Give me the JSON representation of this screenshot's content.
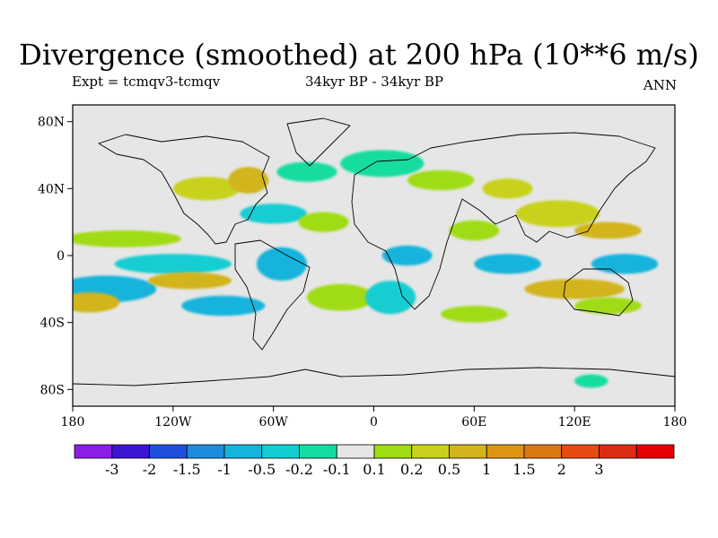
{
  "figure": {
    "title": "Divergence (smoothed) at 200 hPa (10**6 m/s)",
    "expt_label": "Expt = tcmqv3-tcmqv",
    "period_label": "34kyr BP - 34kyr BP",
    "season_label": "ANN"
  },
  "map": {
    "projection": "cylindrical-equidistant",
    "lon_range": [
      -180,
      180
    ],
    "lat_range": [
      -90,
      90
    ],
    "background_color": "#e6e6e6",
    "coastline_color": "#000000",
    "lat_ticks": [
      {
        "value": 80,
        "label": "80N"
      },
      {
        "value": 40,
        "label": "40N"
      },
      {
        "value": 0,
        "label": "0"
      },
      {
        "value": -40,
        "label": "40S"
      },
      {
        "value": -80,
        "label": "80S"
      }
    ],
    "lon_ticks": [
      {
        "value": -180,
        "label": "180"
      },
      {
        "value": -120,
        "label": "120W"
      },
      {
        "value": -60,
        "label": "60W"
      },
      {
        "value": 0,
        "label": "0"
      },
      {
        "value": 60,
        "label": "60E"
      },
      {
        "value": 120,
        "label": "120E"
      },
      {
        "value": 180,
        "label": "180"
      }
    ]
  },
  "colorbar": {
    "colors": [
      "#8c1ee6",
      "#3c14d2",
      "#1e50dc",
      "#1e8cdc",
      "#14b4dc",
      "#14cdd2",
      "#14dca0",
      "#e6e6e6",
      "#a0dc14",
      "#c8d21e",
      "#d2b41e",
      "#dc9614",
      "#dc7814",
      "#e64b14",
      "#dc2d14",
      "#e60000"
    ],
    "labels": [
      "-3",
      "-2",
      "-1.5",
      "-1",
      "-0.5",
      "-0.2",
      "-0.1",
      "0.1",
      "0.2",
      "0.5",
      "1",
      "1.5",
      "2",
      "3"
    ]
  },
  "field_blobs": [
    {
      "lon": -160,
      "lat": -20,
      "rx": 30,
      "ry": 8,
      "color": "#14b4dc"
    },
    {
      "lon": -170,
      "lat": -28,
      "rx": 18,
      "ry": 6,
      "color": "#d2b41e"
    },
    {
      "lon": -150,
      "lat": 10,
      "rx": 35,
      "ry": 5,
      "color": "#a0dc14"
    },
    {
      "lon": -120,
      "lat": -5,
      "rx": 35,
      "ry": 6,
      "color": "#14cdd2"
    },
    {
      "lon": -110,
      "lat": -15,
      "rx": 25,
      "ry": 5,
      "color": "#d2b41e"
    },
    {
      "lon": -90,
      "lat": -30,
      "rx": 25,
      "ry": 6,
      "color": "#14b4dc"
    },
    {
      "lon": -100,
      "lat": 40,
      "rx": 20,
      "ry": 7,
      "color": "#c8d21e"
    },
    {
      "lon": -75,
      "lat": 45,
      "rx": 12,
      "ry": 8,
      "color": "#d2b41e"
    },
    {
      "lon": -60,
      "lat": 25,
      "rx": 20,
      "ry": 6,
      "color": "#14cdd2"
    },
    {
      "lon": -40,
      "lat": 50,
      "rx": 18,
      "ry": 6,
      "color": "#14dca0"
    },
    {
      "lon": -30,
      "lat": 20,
      "rx": 15,
      "ry": 6,
      "color": "#a0dc14"
    },
    {
      "lon": -55,
      "lat": -5,
      "rx": 15,
      "ry": 10,
      "color": "#14b4dc"
    },
    {
      "lon": -20,
      "lat": -25,
      "rx": 20,
      "ry": 8,
      "color": "#a0dc14"
    },
    {
      "lon": 10,
      "lat": -25,
      "rx": 15,
      "ry": 10,
      "color": "#14cdd2"
    },
    {
      "lon": 20,
      "lat": 0,
      "rx": 15,
      "ry": 6,
      "color": "#14b4dc"
    },
    {
      "lon": 5,
      "lat": 55,
      "rx": 25,
      "ry": 8,
      "color": "#14dca0"
    },
    {
      "lon": 40,
      "lat": 45,
      "rx": 20,
      "ry": 6,
      "color": "#a0dc14"
    },
    {
      "lon": 80,
      "lat": 40,
      "rx": 15,
      "ry": 6,
      "color": "#c8d21e"
    },
    {
      "lon": 60,
      "lat": 15,
      "rx": 15,
      "ry": 6,
      "color": "#a0dc14"
    },
    {
      "lon": 80,
      "lat": -5,
      "rx": 20,
      "ry": 6,
      "color": "#14b4dc"
    },
    {
      "lon": 110,
      "lat": 25,
      "rx": 25,
      "ry": 8,
      "color": "#c8d21e"
    },
    {
      "lon": 140,
      "lat": 15,
      "rx": 20,
      "ry": 5,
      "color": "#d2b41e"
    },
    {
      "lon": 150,
      "lat": -5,
      "rx": 20,
      "ry": 6,
      "color": "#14b4dc"
    },
    {
      "lon": 120,
      "lat": -20,
      "rx": 30,
      "ry": 6,
      "color": "#d2b41e"
    },
    {
      "lon": 140,
      "lat": -30,
      "rx": 20,
      "ry": 5,
      "color": "#a0dc14"
    },
    {
      "lon": 60,
      "lat": -35,
      "rx": 20,
      "ry": 5,
      "color": "#a0dc14"
    },
    {
      "lon": 130,
      "lat": -75,
      "rx": 10,
      "ry": 4,
      "color": "#14dca0"
    }
  ]
}
